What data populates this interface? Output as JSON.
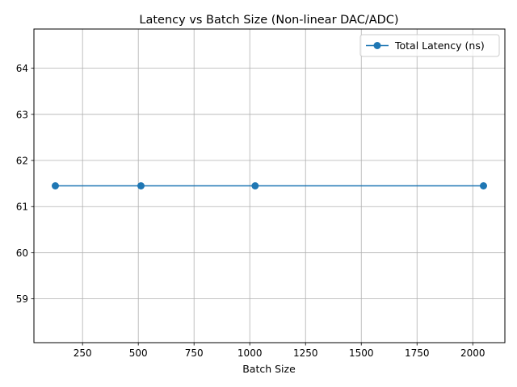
{
  "chart_data": {
    "type": "line",
    "title": "Latency vs Batch Size (Non-linear DAC/ADC)",
    "xlabel": "Batch Size",
    "ylabel": "",
    "xlim": [
      32,
      2144
    ],
    "ylim": [
      58.05,
      64.85
    ],
    "xticks": [
      250,
      500,
      750,
      1000,
      1250,
      1500,
      1750,
      2000
    ],
    "yticks": [
      59,
      60,
      61,
      62,
      63,
      64
    ],
    "grid": true,
    "legend_position": "top-right",
    "series": [
      {
        "name": "Total Latency (ns)",
        "color": "#1f77b4",
        "marker": "circle",
        "x": [
          128,
          512,
          1024,
          2048
        ],
        "y": [
          61.45,
          61.45,
          61.45,
          61.45
        ]
      }
    ]
  }
}
